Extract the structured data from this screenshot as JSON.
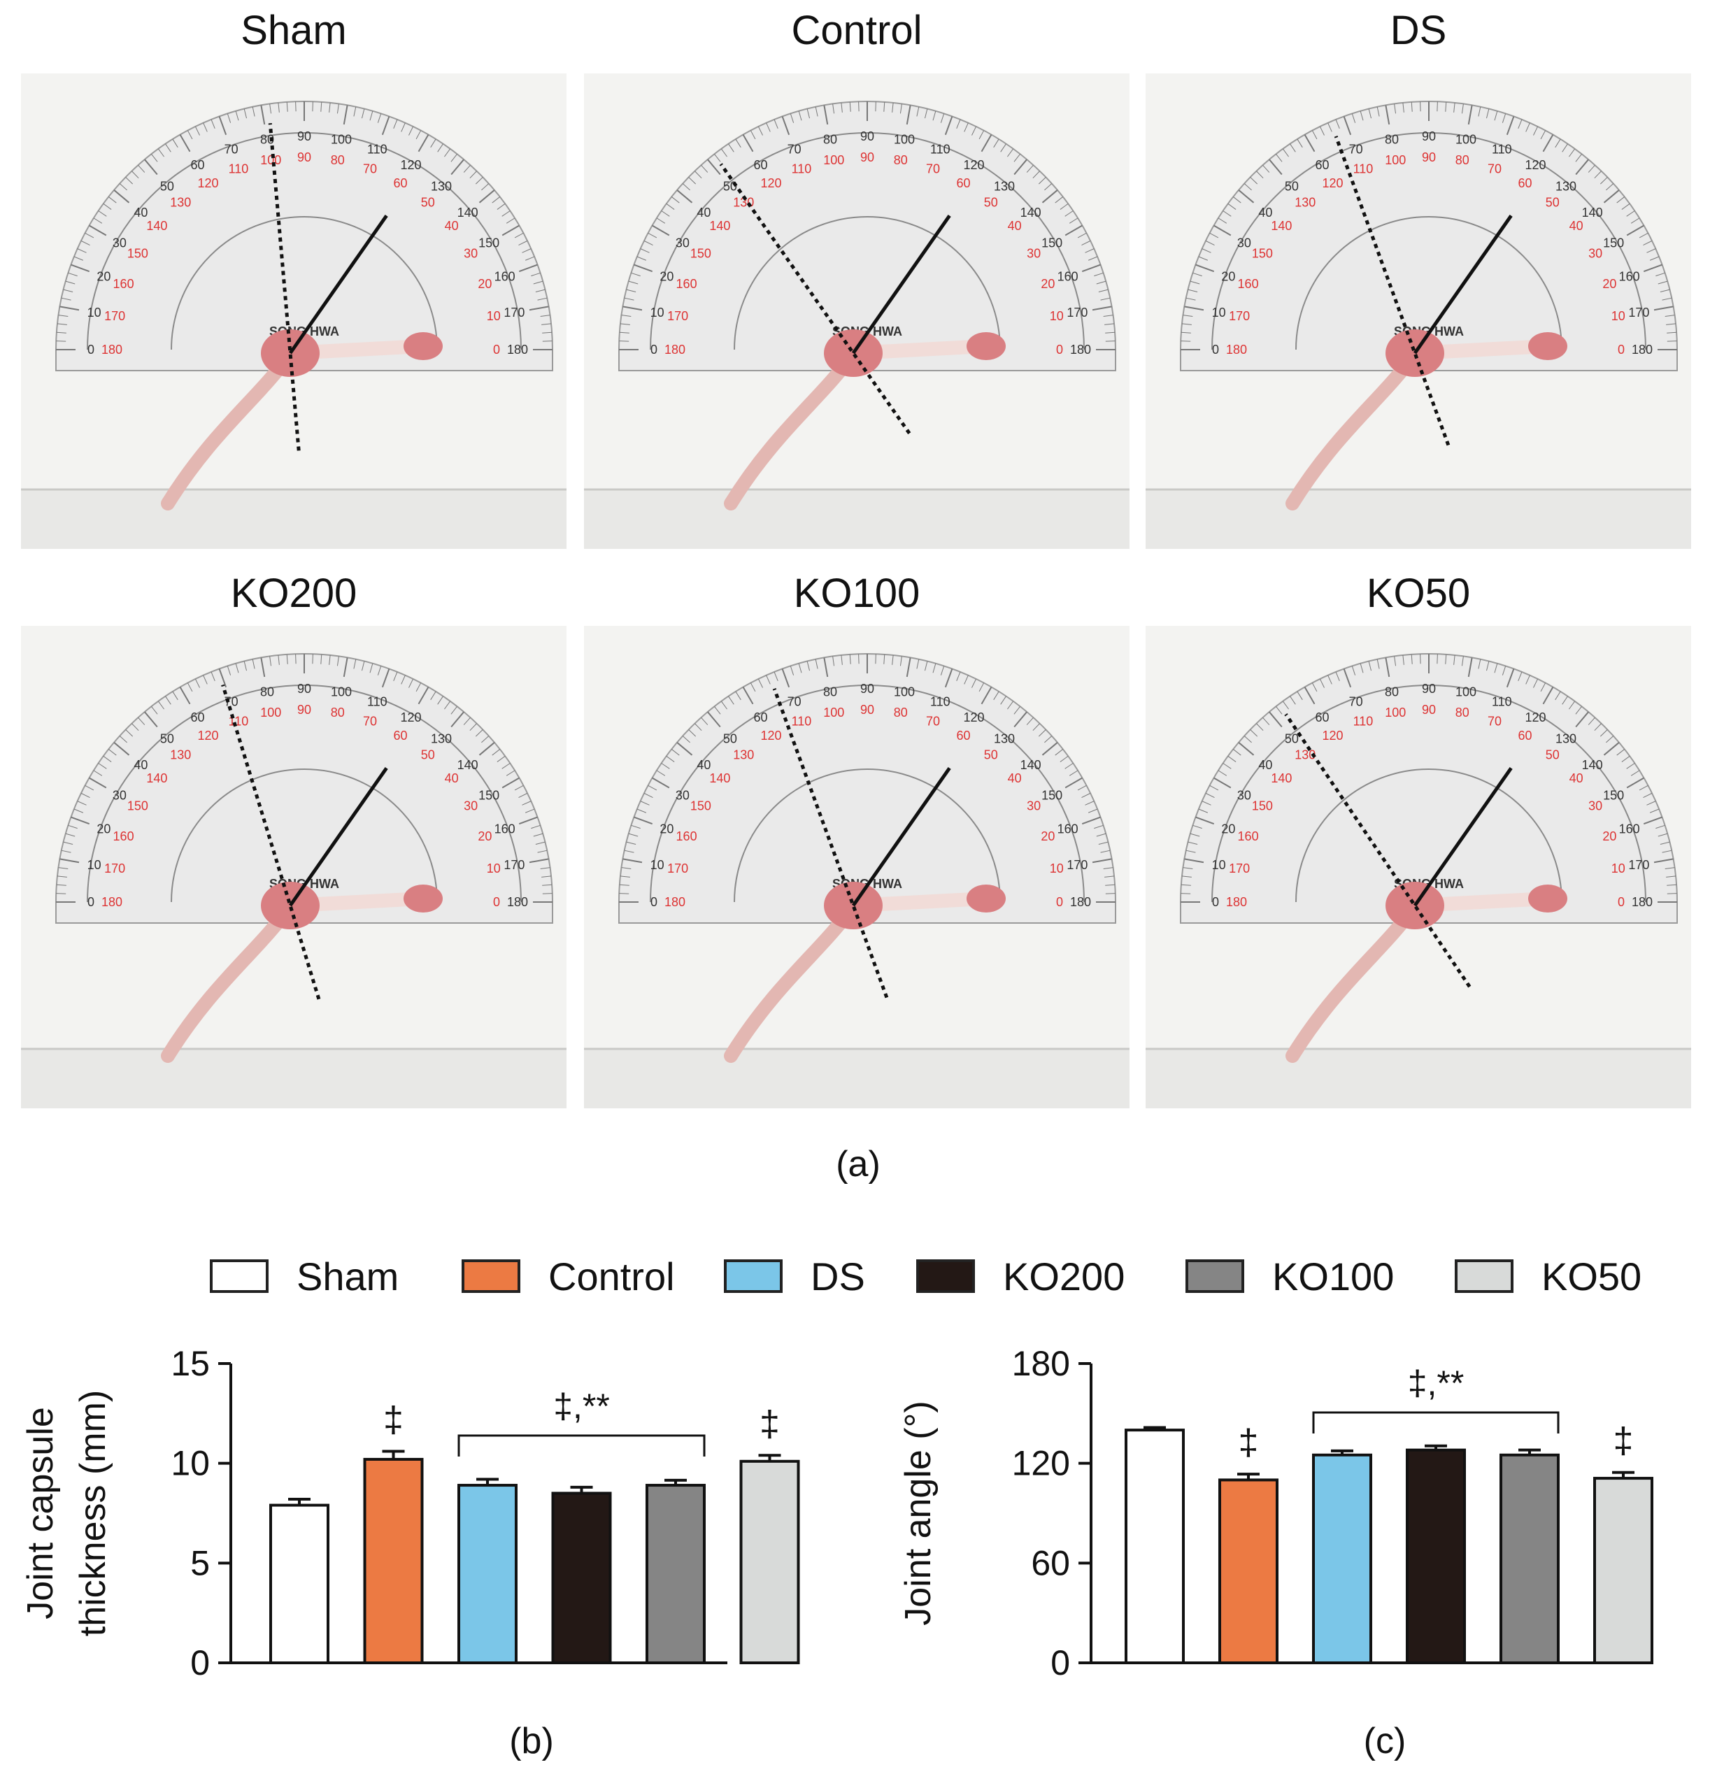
{
  "figure": {
    "panel_a_label": "(a)",
    "panel_b_label": "(b)",
    "panel_c_label": "(c)",
    "photos": [
      {
        "title": "Sham",
        "angle_deg": 140
      },
      {
        "title": "Control",
        "angle_deg": 110
      },
      {
        "title": "DS",
        "angle_deg": 125
      },
      {
        "title": "KO200",
        "angle_deg": 128
      },
      {
        "title": "KO100",
        "angle_deg": 125
      },
      {
        "title": "KO50",
        "angle_deg": 111
      }
    ],
    "protractor_labels": [
      "0",
      "10",
      "20",
      "30",
      "40",
      "50",
      "60",
      "70",
      "80",
      "90",
      "100",
      "110",
      "120",
      "130",
      "140",
      "150",
      "160",
      "170",
      "180"
    ],
    "protractor_brand": "SONG HWA"
  },
  "legend": [
    {
      "label": "Sham",
      "color": "#ffffff"
    },
    {
      "label": "Control",
      "color": "#ec7a43"
    },
    {
      "label": "DS",
      "color": "#7bc6e8"
    },
    {
      "label": "KO200",
      "color": "#231815"
    },
    {
      "label": "KO100",
      "color": "#858585"
    },
    {
      "label": "KO50",
      "color": "#d8dad9"
    }
  ],
  "chart_data": [
    {
      "type": "bar",
      "ylabel_line1": "Joint capsule",
      "ylabel_line2": "thickness (mm)",
      "ylim": [
        0,
        15
      ],
      "yticks": [
        "0",
        "5",
        "10",
        "15"
      ],
      "ytick_values": [
        0,
        5,
        10,
        15
      ],
      "categories": [
        "Sham",
        "Control",
        "DS",
        "KO200",
        "KO100",
        "KO50"
      ],
      "values": [
        7.9,
        10.2,
        8.9,
        8.5,
        8.9,
        10.1
      ],
      "errors": [
        0.3,
        0.4,
        0.3,
        0.3,
        0.25,
        0.3
      ],
      "colors": [
        "#ffffff",
        "#ec7a43",
        "#7bc6e8",
        "#231815",
        "#858585",
        "#d8dad9"
      ],
      "annotations": [
        "",
        "‡",
        "",
        "",
        "",
        "‡"
      ],
      "bracket": {
        "from_index": 2,
        "to_index": 4,
        "label": "‡,**"
      }
    },
    {
      "type": "bar",
      "ylabel_line1": "Joint angle (°)",
      "ylabel_line2": "",
      "ylim": [
        0,
        180
      ],
      "yticks": [
        "0",
        "60",
        "120",
        "180"
      ],
      "ytick_values": [
        0,
        60,
        120,
        180
      ],
      "categories": [
        "Sham",
        "Control",
        "DS",
        "KO200",
        "KO100",
        "KO50"
      ],
      "values": [
        140,
        110,
        125,
        128,
        125,
        111
      ],
      "errors": [
        1.5,
        3.5,
        2.5,
        2.5,
        3,
        3.5
      ],
      "colors": [
        "#ffffff",
        "#ec7a43",
        "#7bc6e8",
        "#231815",
        "#858585",
        "#d8dad9"
      ],
      "annotations": [
        "",
        "‡",
        "",
        "",
        "",
        "‡"
      ],
      "bracket": {
        "from_index": 2,
        "to_index": 4,
        "label": "‡,**"
      }
    }
  ]
}
